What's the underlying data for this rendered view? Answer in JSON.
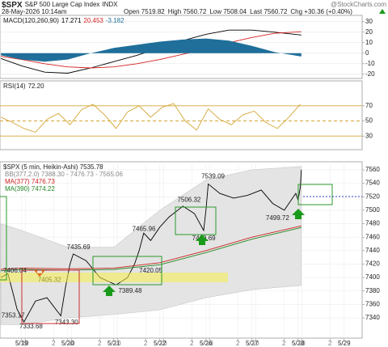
{
  "header": {
    "symbol": "$SPX",
    "name": "S&P 500 Large Cap Index",
    "exchange": "INDX",
    "source": "@StockCharts.com",
    "datetime": "28-May-2026 10:14am",
    "open": "Open 7519.82",
    "high": "High 7560.72",
    "low": "Low 7508.04",
    "last": "Last 7560.72",
    "change": "Chg +30.36 (+0.40%)"
  },
  "chart_data": [
    {
      "type": "line",
      "title": "MACD(120,260,90)",
      "x": [
        -0.45,
        0,
        0.5,
        1,
        1.5,
        2,
        2.5,
        3,
        3.5,
        4,
        4.5,
        5,
        5.5,
        6.07
      ],
      "series": [
        {
          "name": "17.271",
          "color": "#000000",
          "style": "line",
          "values": [
            -5,
            -12,
            -18,
            -19,
            -14,
            -8,
            -2,
            5,
            12,
            18,
            22,
            22,
            20,
            17.271
          ]
        },
        {
          "name": "20.453",
          "color": "#d62020",
          "style": "line",
          "values": [
            -3,
            -6,
            -10,
            -13,
            -14,
            -13,
            -10,
            -6,
            -1,
            4,
            10,
            15,
            19,
            20.453
          ]
        },
        {
          "name": "-3.182",
          "color": "#1f6f9a",
          "style": "area",
          "values": [
            -2,
            -6,
            -8,
            -6,
            0,
            5,
            8,
            11,
            13,
            14,
            12,
            7,
            1,
            -3.182
          ]
        }
      ],
      "xlim": [
        -0.47,
        7.39
      ],
      "ylim": [
        -24,
        36
      ],
      "yticks": [
        30,
        20,
        10,
        0,
        -10,
        -20
      ],
      "grid": true,
      "grid_color": "#e4e4e4"
    },
    {
      "type": "line",
      "title": "RSI(14)",
      "value_label": "72.20",
      "x": [
        -0.45,
        -0.2,
        0.05,
        0.3,
        0.55,
        0.8,
        1.05,
        1.3,
        1.55,
        1.8,
        2.05,
        2.3,
        2.55,
        2.8,
        3.05,
        3.3,
        3.55,
        3.8,
        4.05,
        4.3,
        4.55,
        4.8,
        5.05,
        5.3,
        5.55,
        5.8,
        6.05
      ],
      "series": [
        {
          "color": "#d4a637",
          "style": "line",
          "values": [
            55,
            48,
            40,
            35,
            52,
            60,
            45,
            65,
            72,
            58,
            40,
            62,
            70,
            55,
            68,
            73,
            50,
            38,
            66,
            52,
            45,
            58,
            63,
            48,
            40,
            55,
            72.2
          ]
        }
      ],
      "xlim": [
        -0.47,
        7.39
      ],
      "ylim": [
        12,
        103
      ],
      "yticks": [
        70,
        50,
        30
      ],
      "grid": true,
      "grid_color": "#d4a637"
    },
    {
      "type": "line",
      "title": "$SPX (5 min, Heikin-Ashi) 7535.78",
      "x": [
        -0.45,
        -0.3,
        -0.2,
        -0.1,
        0.05,
        0.3,
        0.55,
        0.85,
        0.95,
        1.05,
        1.12,
        1.4,
        1.7,
        2.05,
        2.3,
        2.45,
        2.55,
        2.65,
        2.8,
        3.0,
        3.2,
        3.5,
        3.75,
        3.95,
        4.0,
        4.05,
        4.3,
        4.6,
        4.9,
        5.2,
        5.45,
        5.7,
        5.85,
        5.95,
        6.0,
        6.05,
        6.07
      ],
      "series": [
        {
          "color": "#000000",
          "style": "line",
          "values": [
            7400,
            7406,
            7380,
            7353,
            7334,
            7365,
            7370,
            7343,
            7385,
            7420,
            7435,
            7425,
            7400,
            7389,
            7400,
            7420,
            7440,
            7466,
            7455,
            7475,
            7490,
            7506,
            7495,
            7470,
            7500,
            7539,
            7525,
            7518,
            7522,
            7530,
            7510,
            7500,
            7515,
            7525,
            7515,
            7535,
            7560
          ]
        },
        {
          "name": "MA(377) 7476.73",
          "color": "#cc2222",
          "style": "line",
          "x": [
            -0.45,
            0,
            1,
            2,
            3,
            4,
            5,
            6.07
          ],
          "values": [
            7412,
            7414,
            7413,
            7414,
            7422,
            7440,
            7460,
            7476.73
          ]
        },
        {
          "name": "MA(390) 7474.22",
          "color": "#228822",
          "style": "line",
          "x": [
            -0.45,
            0,
            1,
            2,
            3,
            4,
            5,
            6.07
          ],
          "values": [
            7410,
            7412,
            7411,
            7412,
            7419,
            7437,
            7457,
            7474.22
          ]
        }
      ],
      "bands": {
        "name": "BB(377,2.0) 7388.30 - 7476.73 - 7565.06",
        "color": "#e4e4e4",
        "x": [
          -0.45,
          0,
          1,
          2,
          3,
          4,
          5,
          6.07
        ],
        "upper": [
          7480,
          7470,
          7445,
          7445,
          7500,
          7545,
          7560,
          7565.06
        ],
        "lower": [
          7330,
          7330,
          7340,
          7345,
          7352,
          7370,
          7382,
          7388.3
        ]
      },
      "annotations": [
        {
          "label": "7406.04",
          "x": -0.4,
          "y": 7410
        },
        {
          "label": "7405.32",
          "x": 0.35,
          "y": 7396
        },
        {
          "label": "7353.17",
          "x": -0.44,
          "y": 7343
        },
        {
          "label": "7333.68",
          "x": -0.05,
          "y": 7327
        },
        {
          "label": "7343.30",
          "x": 0.72,
          "y": 7333
        },
        {
          "label": "7435.69",
          "x": 0.98,
          "y": 7445
        },
        {
          "label": "7389.48",
          "x": 2.1,
          "y": 7380
        },
        {
          "label": "7420.05",
          "x": 2.55,
          "y": 7410
        },
        {
          "label": "7465.96",
          "x": 2.4,
          "y": 7472
        },
        {
          "label": "7506.32",
          "x": 3.38,
          "y": 7515
        },
        {
          "label": "7469.69",
          "x": 3.7,
          "y": 7458
        },
        {
          "label": "7539.09",
          "x": 3.9,
          "y": 7550
        },
        {
          "label": "7499.72",
          "x": 5.3,
          "y": 7488
        }
      ],
      "xlim": [
        -0.47,
        7.39
      ],
      "ylim": [
        7310,
        7572
      ],
      "yticks": [
        7560,
        7540,
        7520,
        7500,
        7480,
        7460,
        7440,
        7420,
        7400,
        7380,
        7360,
        7340
      ],
      "xticks": [
        {
          "value": 0,
          "label": "5/19"
        },
        {
          "value": 0.077,
          "label": "10"
        },
        {
          "value": 0.692,
          "label": "2"
        },
        {
          "value": 1,
          "label": "5/20"
        },
        {
          "value": 1.077,
          "label": "10"
        },
        {
          "value": 1.692,
          "label": "2"
        },
        {
          "value": 2,
          "label": "5/21"
        },
        {
          "value": 2.077,
          "label": "10"
        },
        {
          "value": 2.692,
          "label": "2"
        },
        {
          "value": 3,
          "label": "5/22"
        },
        {
          "value": 3.077,
          "label": "10"
        },
        {
          "value": 3.692,
          "label": "2"
        },
        {
          "value": 4,
          "label": "5/26"
        },
        {
          "value": 4.077,
          "label": "10"
        },
        {
          "value": 4.692,
          "label": "2"
        },
        {
          "value": 5,
          "label": "5/27"
        },
        {
          "value": 5.077,
          "label": "10"
        },
        {
          "value": 5.692,
          "label": "2"
        },
        {
          "value": 6,
          "label": "5/28"
        },
        {
          "value": 6.077,
          "label": "10"
        },
        {
          "value": 6.692,
          "label": "2"
        },
        {
          "value": 7,
          "label": "5/29"
        }
      ],
      "grid": true,
      "grid_color": "#ececec"
    }
  ]
}
